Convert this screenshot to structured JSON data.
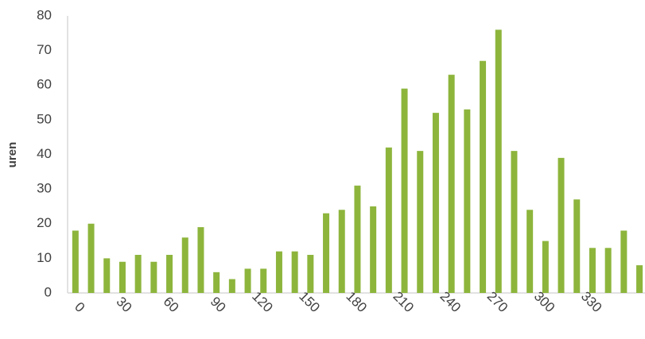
{
  "chart_data": {
    "type": "bar",
    "y_label": "uren",
    "categories": [
      "0",
      null,
      null,
      "30",
      null,
      null,
      "60",
      null,
      null,
      "90",
      null,
      null,
      "120",
      null,
      null,
      "150",
      null,
      null,
      "180",
      null,
      null,
      "210",
      null,
      null,
      "240",
      null,
      null,
      "270",
      null,
      null,
      "300",
      null,
      null,
      "330",
      null,
      null,
      null
    ],
    "values": [
      18,
      20,
      10,
      9,
      11,
      9,
      11,
      16,
      19,
      6,
      4,
      7,
      7,
      12,
      12,
      11,
      23,
      24,
      31,
      25,
      42,
      59,
      41,
      52,
      63,
      53,
      67,
      76,
      41,
      24,
      15,
      39,
      27,
      13,
      13,
      18,
      8
    ],
    "color": "#8db53c",
    "ylim": [
      0,
      80
    ],
    "yticks": [
      0,
      10,
      20,
      30,
      40,
      50,
      60,
      70,
      80
    ],
    "grid": false
  }
}
